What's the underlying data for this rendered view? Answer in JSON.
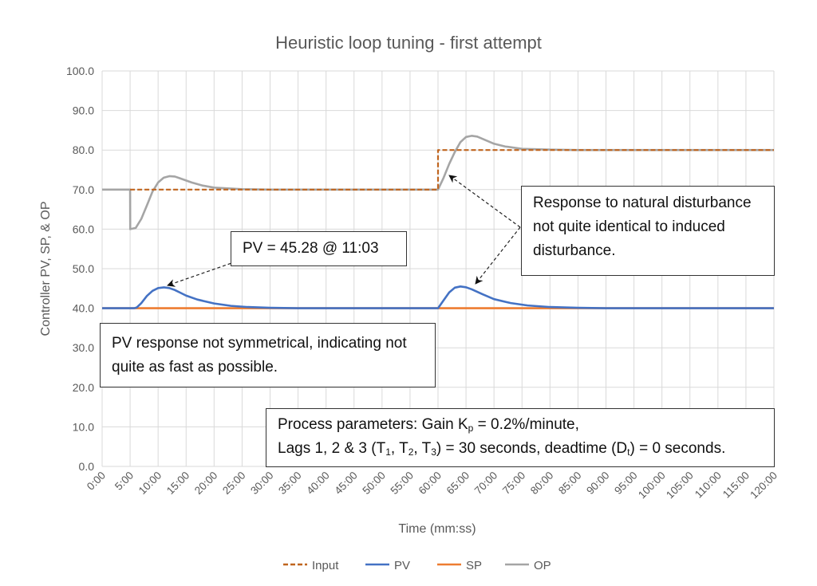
{
  "chart_data": {
    "type": "line",
    "title": "Heuristic loop tuning - first attempt",
    "xlabel": "Time (mm:ss)",
    "ylabel": "Controller PV, SP, & OP",
    "xlim": [
      0,
      120
    ],
    "ylim": [
      0,
      100
    ],
    "grid": true,
    "legend_position": "bottom",
    "x_tick_labels": [
      "0:00",
      "5:00",
      "10:00",
      "15:00",
      "20:00",
      "25:00",
      "30:00",
      "35:00",
      "40:00",
      "45:00",
      "50:00",
      "55:00",
      "60:00",
      "65:00",
      "70:00",
      "75:00",
      "80:00",
      "85:00",
      "90:00",
      "95:00",
      "100:00",
      "105:00",
      "110:00",
      "115:00",
      "120:00"
    ],
    "y_tick_labels": [
      "0.0",
      "10.0",
      "20.0",
      "30.0",
      "40.0",
      "50.0",
      "60.0",
      "70.0",
      "80.0",
      "90.0",
      "100.0"
    ],
    "series": [
      {
        "name": "Input",
        "color": "#C0651F",
        "style": "dashed",
        "points": [
          [
            5,
            70
          ],
          [
            60,
            70
          ],
          [
            60,
            80
          ],
          [
            120,
            80
          ]
        ]
      },
      {
        "name": "PV",
        "color": "#4472C4",
        "style": "solid",
        "points": [
          [
            0,
            40
          ],
          [
            5.7,
            40
          ],
          [
            6.2,
            40.2
          ],
          [
            7,
            41.3
          ],
          [
            8,
            43.1
          ],
          [
            9,
            44.4
          ],
          [
            10,
            45.1
          ],
          [
            11.05,
            45.28
          ],
          [
            12,
            45.1
          ],
          [
            13,
            44.6
          ],
          [
            14,
            43.9
          ],
          [
            15,
            43.2
          ],
          [
            17,
            42.2
          ],
          [
            20,
            41.2
          ],
          [
            23,
            40.6
          ],
          [
            26,
            40.3
          ],
          [
            30,
            40.1
          ],
          [
            35,
            40
          ],
          [
            60,
            40
          ],
          [
            61,
            42
          ],
          [
            62,
            44
          ],
          [
            63,
            45.2
          ],
          [
            64,
            45.5
          ],
          [
            65,
            45.3
          ],
          [
            66,
            44.8
          ],
          [
            68,
            43.5
          ],
          [
            70,
            42.3
          ],
          [
            73,
            41.3
          ],
          [
            76,
            40.7
          ],
          [
            80,
            40.3
          ],
          [
            85,
            40.1
          ],
          [
            90,
            40
          ],
          [
            120,
            40
          ]
        ]
      },
      {
        "name": "SP",
        "color": "#ED7D31",
        "style": "solid",
        "points": [
          [
            0,
            40
          ],
          [
            120,
            40
          ]
        ]
      },
      {
        "name": "OP",
        "color": "#A5A5A5",
        "style": "solid",
        "points": [
          [
            0,
            70
          ],
          [
            5,
            70
          ],
          [
            5.02,
            60
          ],
          [
            6,
            60.3
          ],
          [
            7,
            62.6
          ],
          [
            8,
            66
          ],
          [
            9,
            69.5
          ],
          [
            10,
            71.8
          ],
          [
            11,
            73
          ],
          [
            12,
            73.4
          ],
          [
            13,
            73.3
          ],
          [
            14,
            72.8
          ],
          [
            16,
            71.8
          ],
          [
            18,
            71
          ],
          [
            20,
            70.5
          ],
          [
            25,
            70.1
          ],
          [
            30,
            70
          ],
          [
            60,
            70
          ],
          [
            61,
            73
          ],
          [
            62,
            76.5
          ],
          [
            63,
            79.5
          ],
          [
            64,
            82
          ],
          [
            65,
            83.3
          ],
          [
            66,
            83.6
          ],
          [
            67,
            83.4
          ],
          [
            68,
            82.8
          ],
          [
            70,
            81.6
          ],
          [
            72,
            80.9
          ],
          [
            75,
            80.3
          ],
          [
            80,
            80.1
          ],
          [
            85,
            80
          ],
          [
            120,
            80
          ]
        ]
      }
    ],
    "annotations": {
      "pv_peak": "PV = 45.28 @ 11:03",
      "response": "Response to natural disturbance not quite identical to induced disturbance.",
      "symmetry": "PV response not symmetrical, indicating not quite as fast as possible.",
      "process": {
        "line1_a": "Process parameters: Gain K",
        "line1_sub": "p",
        "line1_b": " = 0.2%/minute,",
        "line2_a": "Lags 1, 2 & 3 (T",
        "sub1": "1",
        "sep1": ", T",
        "sub2": "2",
        "sep2": ", T",
        "sub3": "3",
        "line2_b": ") = 30 seconds, deadtime (D",
        "sub_t": "t",
        "line2_c": ") = 0 seconds."
      }
    }
  }
}
